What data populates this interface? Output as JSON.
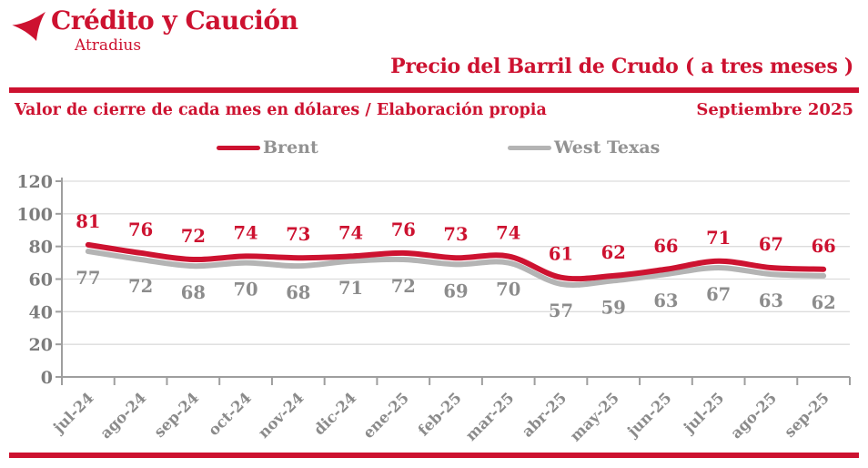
{
  "brand": {
    "name": "Crédito y Caución",
    "sub": "Atradius"
  },
  "header": {
    "title": "Precio del Barril de Crudo ( a tres meses )",
    "subtitle": "Valor de cierre de cada mes en dólares / Elaboración propia",
    "date": "Septiembre 2025"
  },
  "colors": {
    "brand_red": "#cd1230",
    "grid": "#dcdcdc",
    "axis": "#9e9e9e",
    "ytick_label": "#7d7d7d",
    "xtick_label": "#8b8b8b",
    "legend_text": "#929292"
  },
  "chart_data": {
    "type": "line",
    "title": "Precio del Barril de Crudo ( a tres meses )",
    "xlabel": "",
    "ylabel": "",
    "categories": [
      "jul-24",
      "ago-24",
      "sep-24",
      "oct-24",
      "nov-24",
      "dic-24",
      "ene-25",
      "feb-25",
      "mar-25",
      "abr-25",
      "may-25",
      "jun-25",
      "jul-25",
      "ago-25",
      "sep-25"
    ],
    "series": [
      {
        "name": "West Texas",
        "color": "#b4b4b4",
        "label_color": "#8c8c8c",
        "label_position": "below",
        "values": [
          77,
          72,
          68,
          70,
          68,
          71,
          72,
          69,
          70,
          57,
          59,
          63,
          67,
          63,
          62
        ]
      },
      {
        "name": "Brent",
        "color": "#cd1230",
        "label_color": "#cd1230",
        "label_position": "above",
        "values": [
          81,
          76,
          72,
          74,
          73,
          74,
          76,
          73,
          74,
          61,
          62,
          66,
          71,
          67,
          66
        ]
      }
    ],
    "legend_order": [
      "Brent",
      "West Texas"
    ],
    "legend_position": "top",
    "ylim": [
      0,
      120
    ],
    "ytick_step": 20,
    "grid": true,
    "smoothed_lines": true
  }
}
